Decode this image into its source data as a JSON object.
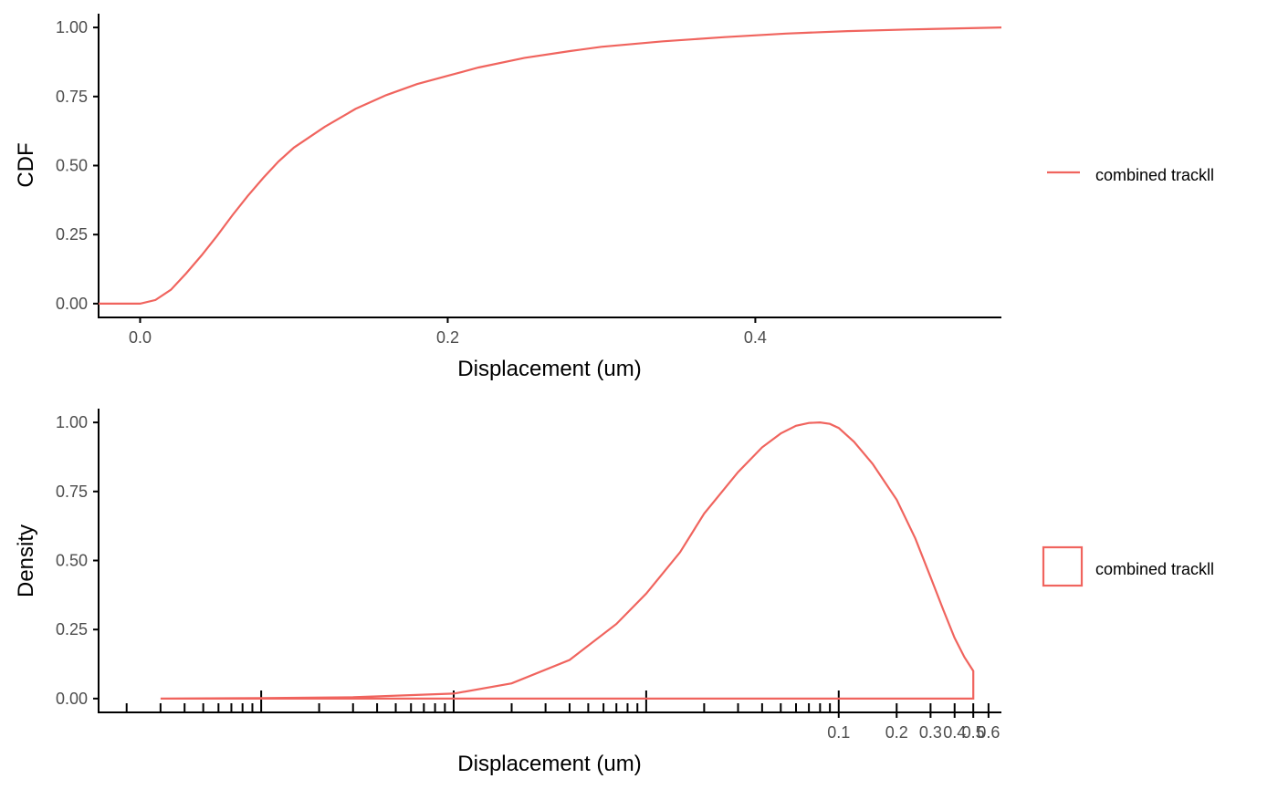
{
  "colors": {
    "series": "#F0645E",
    "axis": "#000000",
    "tick_text": "#4d4d4d"
  },
  "chart_data": [
    {
      "type": "line",
      "xlabel": "Displacement (um)",
      "ylabel": "CDF",
      "xlim": [
        -0.027,
        0.56
      ],
      "ylim": [
        -0.05,
        1.05
      ],
      "x_ticks": [
        "0.0",
        "0.2",
        "0.4"
      ],
      "y_ticks": [
        "0.00",
        "0.25",
        "0.50",
        "0.75",
        "1.00"
      ],
      "grid": false,
      "legend": {
        "position": "right",
        "entries": [
          "combined trackll"
        ]
      },
      "series": [
        {
          "name": "combined trackll",
          "x": [
            -0.027,
            0.0,
            0.01,
            0.02,
            0.03,
            0.04,
            0.05,
            0.06,
            0.07,
            0.08,
            0.09,
            0.1,
            0.12,
            0.14,
            0.16,
            0.18,
            0.2,
            0.22,
            0.25,
            0.28,
            0.3,
            0.34,
            0.38,
            0.42,
            0.46,
            0.5,
            0.56
          ],
          "y": [
            0.0,
            0.0,
            0.013,
            0.05,
            0.11,
            0.175,
            0.245,
            0.32,
            0.39,
            0.455,
            0.515,
            0.565,
            0.64,
            0.705,
            0.755,
            0.795,
            0.825,
            0.855,
            0.89,
            0.915,
            0.93,
            0.95,
            0.965,
            0.978,
            0.987,
            0.993,
            1.0
          ]
        }
      ]
    },
    {
      "type": "area",
      "xlabel": "Displacement (um)",
      "ylabel": "Density",
      "x_scale": "log10",
      "xlim": [
        1.43e-05,
        0.7
      ],
      "ylim": [
        -0.05,
        1.05
      ],
      "x_ticks": [
        "0.1",
        "0.2",
        "0.3",
        "0.4",
        "0.5",
        "0.6"
      ],
      "y_ticks": [
        "0.00",
        "0.25",
        "0.50",
        "0.75",
        "1.00"
      ],
      "grid": false,
      "legend": {
        "position": "right",
        "entries": [
          "combined trackll"
        ]
      },
      "series": [
        {
          "name": "combined trackll",
          "x": [
            3e-05,
            0.0001,
            0.0003,
            0.001,
            0.002,
            0.004,
            0.007,
            0.01,
            0.015,
            0.02,
            0.03,
            0.04,
            0.05,
            0.06,
            0.07,
            0.08,
            0.09,
            0.1,
            0.12,
            0.15,
            0.2,
            0.25,
            0.3,
            0.35,
            0.4,
            0.45,
            0.5
          ],
          "y": [
            0.0,
            0.002,
            0.005,
            0.018,
            0.055,
            0.14,
            0.27,
            0.38,
            0.53,
            0.67,
            0.82,
            0.91,
            0.96,
            0.988,
            0.998,
            1.0,
            0.995,
            0.98,
            0.93,
            0.85,
            0.72,
            0.58,
            0.44,
            0.32,
            0.22,
            0.15,
            0.1
          ]
        }
      ]
    }
  ]
}
